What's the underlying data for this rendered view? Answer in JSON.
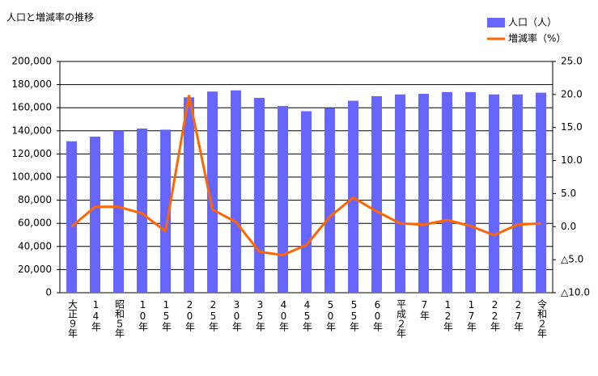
{
  "chart_data": {
    "type": "bar-line",
    "title": "人口と増減率の推移",
    "categories": [
      "大正９年",
      "14年",
      "昭和５年",
      "10年",
      "15年",
      "20年",
      "25年",
      "30年",
      "35年",
      "40年",
      "45年",
      "50年",
      "55年",
      "60年",
      "平成２年",
      "7年",
      "12年",
      "17年",
      "22年",
      "27年",
      "令和２年"
    ],
    "series": [
      {
        "name": "人口（人）",
        "type": "bar",
        "color": "#6666ff",
        "values": [
          131000,
          135000,
          140000,
          142000,
          141000,
          169000,
          174000,
          175000,
          168500,
          161500,
          157000,
          159500,
          166000,
          170000,
          171500,
          172000,
          173500,
          173500,
          171500,
          171500,
          173000
        ]
      },
      {
        "name": "増減率（%）",
        "type": "line",
        "axis": "y2",
        "color": "#ff6600",
        "values": [
          0.0,
          3.0,
          3.0,
          2.0,
          -0.7,
          19.8,
          2.6,
          0.7,
          -3.8,
          -4.3,
          -2.8,
          1.5,
          4.4,
          2.3,
          0.5,
          0.3,
          1.0,
          0.1,
          -1.3,
          0.3,
          0.5
        ]
      }
    ],
    "ylim": [
      0,
      200000
    ],
    "yticks": [
      0,
      {
        "value": 20000,
        "label": "20,000"
      },
      {
        "value": 40000,
        "label": "40,000"
      },
      {
        "value": 60000,
        "label": "60,000"
      },
      {
        "value": 80000,
        "label": "80,000"
      },
      {
        "value": 100000,
        "label": "100,000"
      },
      {
        "value": 120000,
        "label": "120,000"
      },
      {
        "value": 140000,
        "label": "140,000"
      },
      {
        "value": 160000,
        "label": "160,000"
      },
      {
        "value": 180000,
        "label": "180,000"
      },
      {
        "value": 200000,
        "label": "200,000"
      }
    ],
    "y2lim": [
      -10,
      25
    ],
    "y2ticks": [
      {
        "value": -10,
        "label": "△10.0"
      },
      {
        "value": -5,
        "label": "△5.0"
      },
      {
        "value": 0,
        "label": "0.0"
      },
      {
        "value": 5,
        "label": "5.0"
      },
      {
        "value": 10,
        "label": "10.0"
      },
      {
        "value": 15,
        "label": "15.0"
      },
      {
        "value": 20,
        "label": "20.0"
      },
      {
        "value": 25,
        "label": "25.0"
      }
    ],
    "grid": true,
    "legend": "top-right"
  }
}
